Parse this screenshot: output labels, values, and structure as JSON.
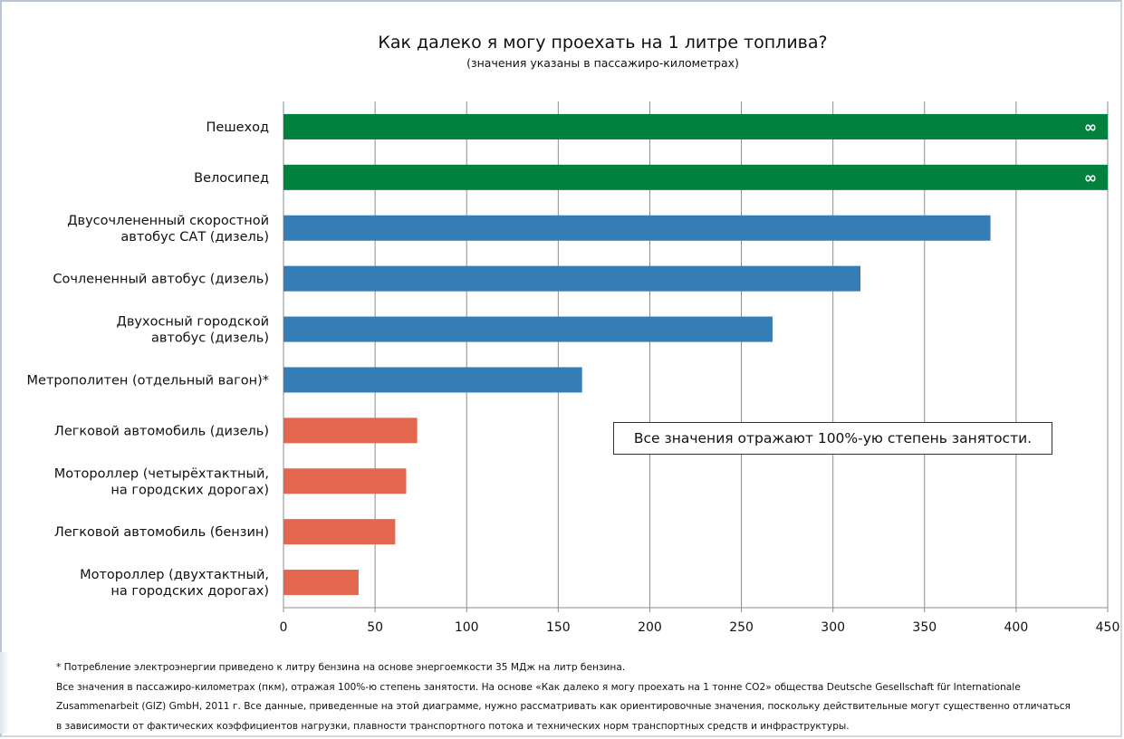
{
  "chart_data": {
    "type": "bar",
    "orientation": "horizontal",
    "title": "Как далеко я могу проехать на 1 литре топлива?",
    "subtitle": "(значения указаны в пассажиро-километрах)",
    "xlim": [
      0,
      450
    ],
    "xticks": [
      0,
      50,
      100,
      150,
      200,
      250,
      300,
      350,
      400,
      450
    ],
    "grid": true,
    "categories": [
      [
        "Пешеход"
      ],
      [
        "Велосипед"
      ],
      [
        "Двусочлененный скоростной",
        "автобус САТ (дизель)"
      ],
      [
        "Сочлененный автобус (дизель)"
      ],
      [
        "Двухосный городской",
        "автобус (дизель)"
      ],
      [
        "Метрополитен (отдельный вагон)*"
      ],
      [
        "Легковой автомобиль (дизель)"
      ],
      [
        "Мотороллер (четырёхтактный,",
        "на городских дорогах)"
      ],
      [
        "Легковой автомобиль (бензин)"
      ],
      [
        "Мотороллер (двухтактный,",
        "на городских дорогах)"
      ]
    ],
    "values": [
      "∞",
      "∞",
      386,
      315,
      267,
      163,
      73,
      67,
      61,
      41
    ],
    "colors": [
      "#00813d",
      "#00813d",
      "#357db5",
      "#357db5",
      "#357db5",
      "#357db5",
      "#e2674e",
      "#e2674e",
      "#e2674e",
      "#e2674e"
    ],
    "annotation": "Все значения отражают 100%-ую степень занятости."
  },
  "footnotes": [
    "* Потребление электроэнергии приведено к литру бензина на основе энергоемкости 35 МДж на литр бензина.",
    "Все значения в пассажиро-километрах (пкм), отражая 100%-ю степень занятости. На основе «Как далеко я могу проехать на 1 тонне CO2» общества Deutsche Gesellschaft für Internationale",
    "Zusammenarbeit (GIZ) GmbH, 2011 г. Все данные, приведенные на этой диаграмме, нужно рассматривать как ориентировочные значения, поскольку действительные могут существенно отличаться",
    "в зависимости от фактических коэффициентов нагрузки, плавности транспортного потока и технических норм транспортных средств и инфраструктуры."
  ]
}
